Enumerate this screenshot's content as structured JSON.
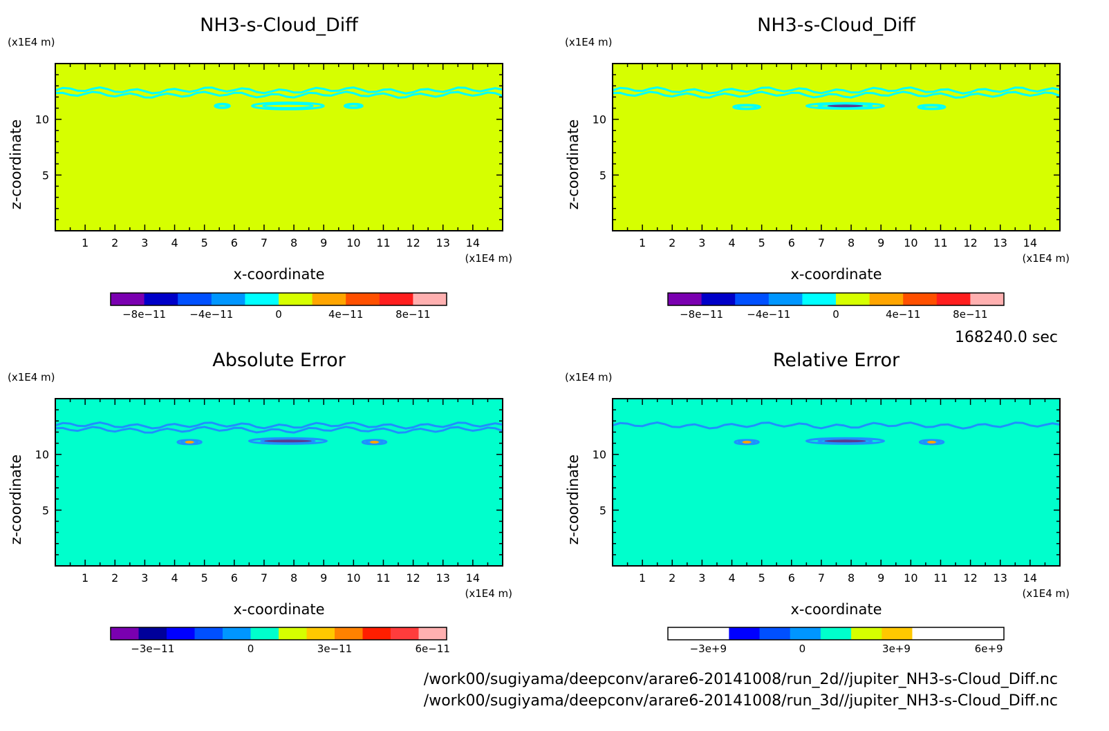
{
  "colors": {
    "fill_yellow": "#d6ff00",
    "fill_green": "#00ffcc",
    "contour_cyan": "#00ffff",
    "contour_blue": "#1e90ff",
    "spot_orange": "#ffa500",
    "spot_purple": "#5a3c8c"
  },
  "info": {
    "time": "168240.0 sec",
    "file1": "/work00/sugiyama/deepconv/arare6-20141008/run_2d//jupiter_NH3-s-Cloud_Diff.nc",
    "file2": "/work00/sugiyama/deepconv/arare6-20141008/run_3d//jupiter_NH3-s-Cloud_Diff.nc"
  },
  "chart_data": [
    {
      "type": "heatmap",
      "title": "NH3-s-Cloud_Diff",
      "xlabel": "x-coordinate",
      "ylabel": "z-coordinate",
      "xunit": "(x1E4 m)",
      "yunit": "(x1E4 m)",
      "xlim": [
        0,
        15
      ],
      "ylim": [
        0,
        15
      ],
      "xticks": [
        "1",
        "2",
        "3",
        "4",
        "5",
        "6",
        "7",
        "8",
        "9",
        "10",
        "11",
        "12",
        "13",
        "14"
      ],
      "yticks": [
        "5",
        "10"
      ],
      "background": "fill_yellow",
      "contours": [
        {
          "kind": "band",
          "z": 12.6,
          "color": "contour_cyan"
        },
        {
          "kind": "band",
          "z": 12.2,
          "color": "contour_cyan"
        },
        {
          "kind": "blob",
          "x": 7.8,
          "z": 11.2,
          "w": 2.4,
          "h": 0.6,
          "color": "contour_cyan"
        },
        {
          "kind": "blob",
          "x": 5.6,
          "z": 11.2,
          "w": 0.5,
          "h": 0.3,
          "color": "contour_cyan"
        },
        {
          "kind": "blob",
          "x": 10,
          "z": 11.2,
          "w": 0.6,
          "h": 0.3,
          "color": "contour_cyan"
        }
      ],
      "colorbar": {
        "colors": [
          "#7a00b0",
          "#0000c8",
          "#0050ff",
          "#0096ff",
          "#00ffff",
          "#d6ff00",
          "#ffa500",
          "#ff5000",
          "#ff1e1e",
          "#ffb0b0"
        ],
        "ticks": [
          {
            "label": "−8e−11",
            "at": 0.1
          },
          {
            "label": "−4e−11",
            "at": 0.3
          },
          {
            "label": "0",
            "at": 0.5
          },
          {
            "label": "4e−11",
            "at": 0.7
          },
          {
            "label": "8e−11",
            "at": 0.9
          }
        ]
      }
    },
    {
      "type": "heatmap",
      "title": "NH3-s-Cloud_Diff",
      "xlabel": "x-coordinate",
      "ylabel": "z-coordinate",
      "xunit": "(x1E4 m)",
      "yunit": "(x1E4 m)",
      "xlim": [
        0,
        15
      ],
      "ylim": [
        0,
        15
      ],
      "xticks": [
        "1",
        "2",
        "3",
        "4",
        "5",
        "6",
        "7",
        "8",
        "9",
        "10",
        "11",
        "12",
        "13",
        "14"
      ],
      "yticks": [
        "5",
        "10"
      ],
      "background": "fill_yellow",
      "contours": [
        {
          "kind": "band",
          "z": 12.6,
          "color": "contour_cyan"
        },
        {
          "kind": "band",
          "z": 12.2,
          "color": "contour_cyan"
        },
        {
          "kind": "blob",
          "x": 4.5,
          "z": 11.1,
          "w": 0.9,
          "h": 0.3,
          "color": "contour_cyan"
        },
        {
          "kind": "blob",
          "x": 7.8,
          "z": 11.2,
          "w": 2.6,
          "h": 0.5,
          "color": "contour_cyan"
        },
        {
          "kind": "spot",
          "x": 7.8,
          "z": 11.2,
          "w": 1.2,
          "h": 0.15,
          "color": "spot_purple"
        },
        {
          "kind": "blob",
          "x": 10.7,
          "z": 11.1,
          "w": 0.9,
          "h": 0.3,
          "color": "contour_cyan"
        }
      ],
      "colorbar": {
        "colors": [
          "#7a00b0",
          "#0000c8",
          "#0050ff",
          "#0096ff",
          "#00ffff",
          "#d6ff00",
          "#ffa500",
          "#ff5000",
          "#ff1e1e",
          "#ffb0b0"
        ],
        "ticks": [
          {
            "label": "−8e−11",
            "at": 0.1
          },
          {
            "label": "−4e−11",
            "at": 0.3
          },
          {
            "label": "0",
            "at": 0.5
          },
          {
            "label": "4e−11",
            "at": 0.7
          },
          {
            "label": "8e−11",
            "at": 0.9
          }
        ]
      }
    },
    {
      "type": "heatmap",
      "title": "Absolute Error",
      "xlabel": "x-coordinate",
      "ylabel": "z-coordinate",
      "xunit": "(x1E4 m)",
      "yunit": "(x1E4 m)",
      "xlim": [
        0,
        15
      ],
      "ylim": [
        0,
        15
      ],
      "xticks": [
        "1",
        "2",
        "3",
        "4",
        "5",
        "6",
        "7",
        "8",
        "9",
        "10",
        "11",
        "12",
        "13",
        "14"
      ],
      "yticks": [
        "5",
        "10"
      ],
      "background": "fill_green",
      "contours": [
        {
          "kind": "band",
          "z": 12.6,
          "color": "contour_blue"
        },
        {
          "kind": "band",
          "z": 12.2,
          "color": "contour_blue"
        },
        {
          "kind": "blob",
          "x": 4.5,
          "z": 11.1,
          "w": 0.8,
          "h": 0.3,
          "color": "contour_blue"
        },
        {
          "kind": "spot",
          "x": 4.5,
          "z": 11.1,
          "w": 0.3,
          "h": 0.12,
          "color": "spot_orange"
        },
        {
          "kind": "blob",
          "x": 7.8,
          "z": 11.2,
          "w": 2.6,
          "h": 0.5,
          "color": "contour_blue"
        },
        {
          "kind": "spot",
          "x": 7.8,
          "z": 11.2,
          "w": 1.6,
          "h": 0.15,
          "color": "spot_purple"
        },
        {
          "kind": "blob",
          "x": 10.7,
          "z": 11.1,
          "w": 0.8,
          "h": 0.3,
          "color": "contour_blue"
        },
        {
          "kind": "spot",
          "x": 10.7,
          "z": 11.1,
          "w": 0.3,
          "h": 0.12,
          "color": "spot_orange"
        }
      ],
      "colorbar": {
        "colors": [
          "#7a00b0",
          "#00009a",
          "#0000ff",
          "#0050ff",
          "#0096ff",
          "#00ffcc",
          "#d6ff00",
          "#ffc800",
          "#ff8200",
          "#ff1e00",
          "#ff3c3c",
          "#ffb0b0"
        ],
        "ticks": [
          {
            "label": "−3e−11",
            "at": 0.125
          },
          {
            "label": "0",
            "at": 0.4167
          },
          {
            "label": "3e−11",
            "at": 0.6667
          },
          {
            "label": "6e−11",
            "at": 0.9583
          }
        ]
      }
    },
    {
      "type": "heatmap",
      "title": "Relative Error",
      "xlabel": "x-coordinate",
      "ylabel": "z-coordinate",
      "xunit": "(x1E4 m)",
      "yunit": "(x1E4 m)",
      "xlim": [
        0,
        15
      ],
      "ylim": [
        0,
        15
      ],
      "xticks": [
        "1",
        "2",
        "3",
        "4",
        "5",
        "6",
        "7",
        "8",
        "9",
        "10",
        "11",
        "12",
        "13",
        "14"
      ],
      "yticks": [
        "5",
        "10"
      ],
      "background": "fill_green",
      "contours": [
        {
          "kind": "band",
          "z": 12.6,
          "color": "contour_blue"
        },
        {
          "kind": "blob",
          "x": 4.5,
          "z": 11.1,
          "w": 0.8,
          "h": 0.3,
          "color": "contour_blue"
        },
        {
          "kind": "spot",
          "x": 4.5,
          "z": 11.1,
          "w": 0.3,
          "h": 0.12,
          "color": "spot_orange"
        },
        {
          "kind": "blob",
          "x": 7.8,
          "z": 11.2,
          "w": 2.6,
          "h": 0.5,
          "color": "contour_blue"
        },
        {
          "kind": "spot",
          "x": 7.8,
          "z": 11.2,
          "w": 1.4,
          "h": 0.2,
          "color": "spot_purple"
        },
        {
          "kind": "blob",
          "x": 10.7,
          "z": 11.1,
          "w": 0.8,
          "h": 0.3,
          "color": "contour_blue"
        },
        {
          "kind": "spot",
          "x": 10.7,
          "z": 11.1,
          "w": 0.3,
          "h": 0.12,
          "color": "spot_orange"
        }
      ],
      "colorbar": {
        "colors": [
          "#ffffff",
          "#ffffff",
          "#0000ff",
          "#0050ff",
          "#0096ff",
          "#00ffcc",
          "#d6ff00",
          "#ffc800",
          "#ffffff",
          "#ffffff",
          "#ffffff"
        ],
        "ticks": [
          {
            "label": "−3e+9",
            "at": 0.12
          },
          {
            "label": "0",
            "at": 0.4
          },
          {
            "label": "3e+9",
            "at": 0.68
          },
          {
            "label": "6e+9",
            "at": 0.955
          }
        ]
      }
    }
  ]
}
